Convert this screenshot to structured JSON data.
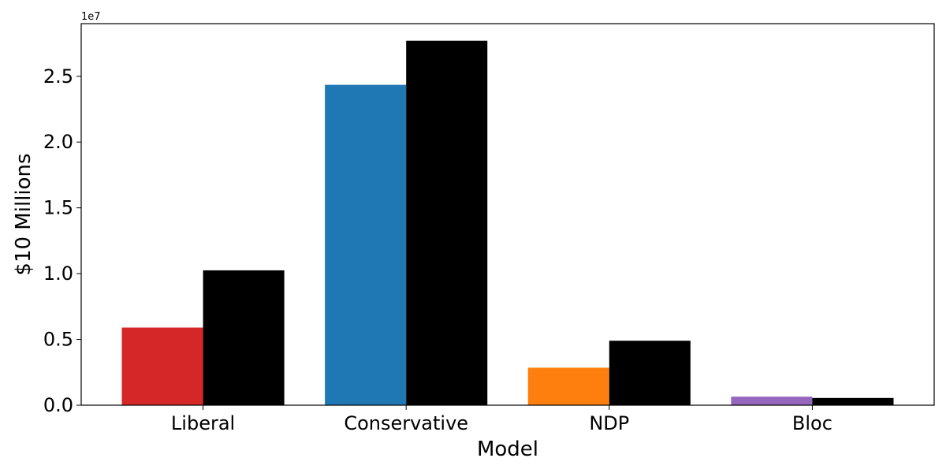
{
  "chart_data": {
    "type": "bar",
    "categories": [
      "Liberal",
      "Conservative",
      "NDP",
      "Bloc"
    ],
    "series": [
      {
        "values": [
          5900000,
          24350000,
          2850000,
          650000
        ],
        "colors": [
          "#d62728",
          "#1f77b4",
          "#ff7f0e",
          "#9467bd"
        ]
      },
      {
        "values": [
          10250000,
          27700000,
          4900000,
          550000
        ],
        "colors": [
          "#000000",
          "#000000",
          "#000000",
          "#000000"
        ]
      }
    ],
    "xlabel": "Model",
    "ylabel": "$10 Millions",
    "offset_text": "1e7",
    "ylim": [
      0,
      29000000
    ],
    "yticks": [
      0,
      5000000,
      10000000,
      15000000,
      20000000,
      25000000
    ],
    "ytick_labels": [
      "0.0",
      "0.5",
      "1.0",
      "1.5",
      "2.0",
      "2.5"
    ],
    "grid": false,
    "legend": "none"
  }
}
